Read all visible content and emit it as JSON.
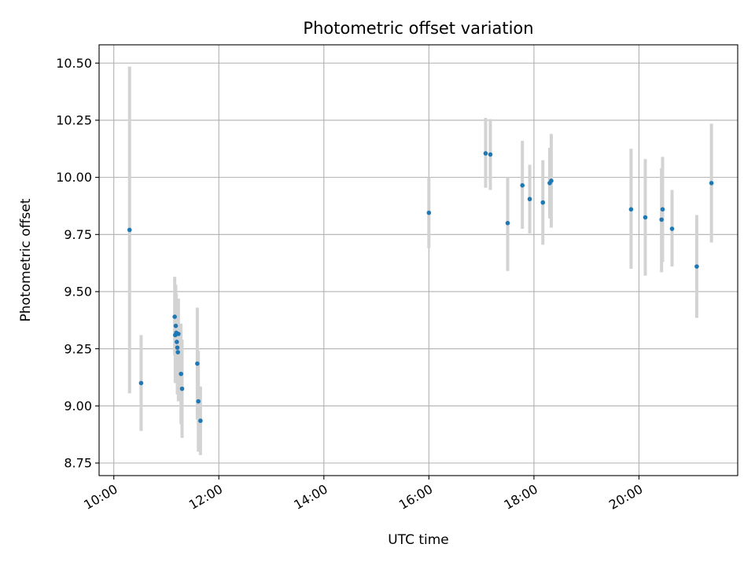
{
  "chart_data": {
    "type": "scatter",
    "title": "Photometric offset variation",
    "xlabel": "UTC time",
    "ylabel": "Photometric offset",
    "x_unit": "hour",
    "xlim": [
      9.72,
      21.88
    ],
    "ylim": [
      8.695,
      10.58
    ],
    "x_ticks": [
      10,
      12,
      14,
      16,
      18,
      20
    ],
    "x_tick_labels": [
      "10:00",
      "12:00",
      "14:00",
      "16:00",
      "18:00",
      "20:00"
    ],
    "y_ticks": [
      8.75,
      9.0,
      9.25,
      9.5,
      9.75,
      10.0,
      10.25,
      10.5
    ],
    "y_tick_labels": [
      "8.75",
      "9.00",
      "9.25",
      "9.50",
      "9.75",
      "10.00",
      "10.25",
      "10.50"
    ],
    "grid": true,
    "point_color": "#1f77b4",
    "errorbar_color": "#d3d3d3",
    "points": [
      {
        "x": 10.3,
        "y": 9.77,
        "low": 9.055,
        "high": 10.485
      },
      {
        "x": 10.52,
        "y": 9.1,
        "low": 8.89,
        "high": 9.31
      },
      {
        "x": 11.16,
        "y": 9.39,
        "low": 9.22,
        "high": 9.565
      },
      {
        "x": 11.17,
        "y": 9.31,
        "low": 9.1,
        "high": 9.52
      },
      {
        "x": 11.18,
        "y": 9.35,
        "low": 9.19,
        "high": 9.53
      },
      {
        "x": 11.19,
        "y": 9.32,
        "low": 9.15,
        "high": 9.49
      },
      {
        "x": 11.2,
        "y": 9.28,
        "low": 9.13,
        "high": 9.43
      },
      {
        "x": 11.21,
        "y": 9.255,
        "low": 9.05,
        "high": 9.46
      },
      {
        "x": 11.22,
        "y": 9.235,
        "low": 9.06,
        "high": 9.41
      },
      {
        "x": 11.23,
        "y": 9.315,
        "low": 9.02,
        "high": 9.47
      },
      {
        "x": 11.28,
        "y": 9.14,
        "low": 8.92,
        "high": 9.36
      },
      {
        "x": 11.3,
        "y": 9.075,
        "low": 8.86,
        "high": 9.29
      },
      {
        "x": 11.59,
        "y": 9.185,
        "low": 8.94,
        "high": 9.43
      },
      {
        "x": 11.61,
        "y": 9.02,
        "low": 8.8,
        "high": 9.24
      },
      {
        "x": 11.65,
        "y": 8.935,
        "low": 8.785,
        "high": 9.085
      },
      {
        "x": 16.0,
        "y": 9.845,
        "low": 9.69,
        "high": 10.0
      },
      {
        "x": 17.08,
        "y": 10.105,
        "low": 9.955,
        "high": 10.26
      },
      {
        "x": 17.17,
        "y": 10.1,
        "low": 9.945,
        "high": 10.255
      },
      {
        "x": 17.5,
        "y": 9.8,
        "low": 9.59,
        "high": 10.0
      },
      {
        "x": 17.78,
        "y": 9.965,
        "low": 9.775,
        "high": 10.16
      },
      {
        "x": 17.92,
        "y": 9.905,
        "low": 9.755,
        "high": 10.055
      },
      {
        "x": 18.17,
        "y": 9.89,
        "low": 9.705,
        "high": 10.075
      },
      {
        "x": 18.3,
        "y": 9.975,
        "low": 9.82,
        "high": 10.13
      },
      {
        "x": 18.33,
        "y": 9.985,
        "low": 9.78,
        "high": 10.19
      },
      {
        "x": 19.85,
        "y": 9.86,
        "low": 9.6,
        "high": 10.125
      },
      {
        "x": 20.12,
        "y": 9.825,
        "low": 9.57,
        "high": 10.08
      },
      {
        "x": 20.43,
        "y": 9.815,
        "low": 9.585,
        "high": 10.04
      },
      {
        "x": 20.45,
        "y": 9.86,
        "low": 9.63,
        "high": 10.09
      },
      {
        "x": 20.63,
        "y": 9.775,
        "low": 9.61,
        "high": 9.945
      },
      {
        "x": 21.1,
        "y": 9.61,
        "low": 9.385,
        "high": 9.835
      },
      {
        "x": 21.38,
        "y": 9.975,
        "low": 9.715,
        "high": 10.235
      }
    ]
  }
}
